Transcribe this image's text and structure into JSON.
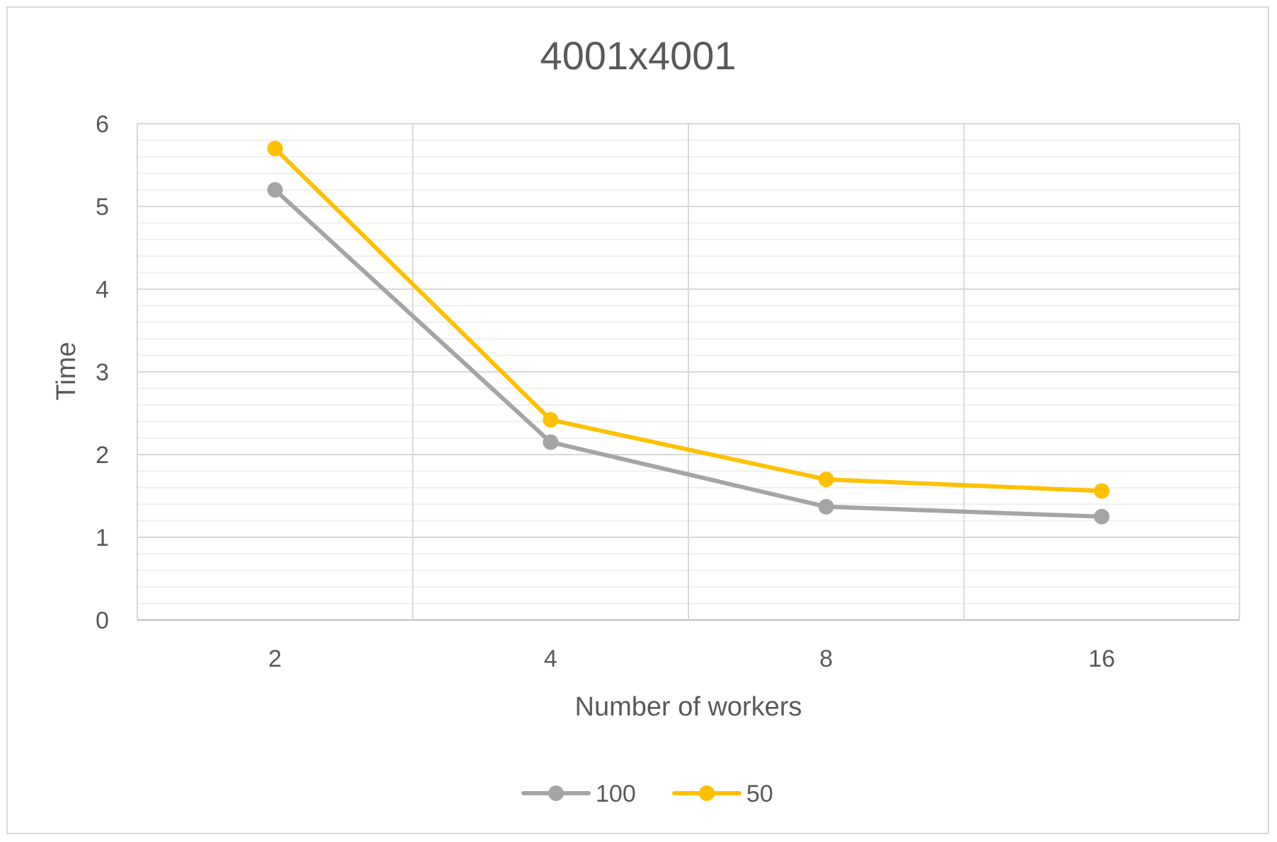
{
  "chart_data": {
    "type": "line",
    "title": "4001x4001",
    "xlabel": "Number of workers",
    "ylabel": "Time",
    "categories": [
      "2",
      "4",
      "8",
      "16"
    ],
    "ylim": [
      0,
      6
    ],
    "y_ticks": [
      "0",
      "1",
      "2",
      "3",
      "4",
      "5",
      "6"
    ],
    "grid": true,
    "legend_position": "bottom",
    "series": [
      {
        "name": "100",
        "color": "#a5a5a5",
        "values": [
          5.2,
          2.15,
          1.37,
          1.25
        ]
      },
      {
        "name": "50",
        "color": "#ffc000",
        "values": [
          5.7,
          2.42,
          1.7,
          1.56
        ]
      }
    ]
  }
}
